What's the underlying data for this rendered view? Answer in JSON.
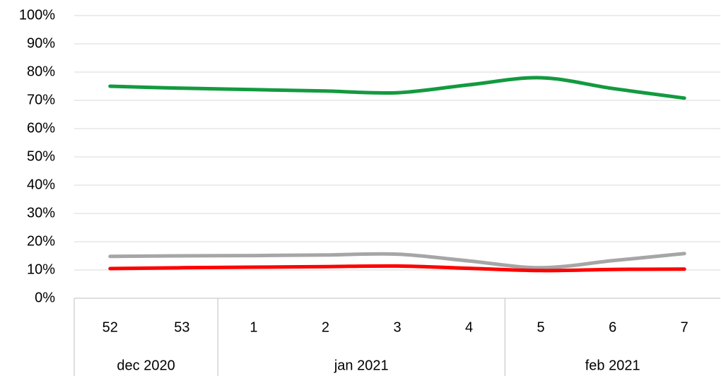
{
  "chart_data": {
    "type": "line",
    "categories": [
      "52",
      "53",
      "1",
      "2",
      "3",
      "4",
      "5",
      "6",
      "7"
    ],
    "groups": [
      {
        "label": "dec 2020",
        "size": 2
      },
      {
        "label": "jan 2021",
        "size": 4
      },
      {
        "label": "feb 2021",
        "size": 3
      }
    ],
    "series": [
      {
        "color": "#139a3f",
        "values": [
          75,
          74.3,
          73.8,
          73.3,
          72.7,
          75.5,
          78,
          74.2,
          70.8
        ]
      },
      {
        "color": "#a6a6a6",
        "values": [
          14.8,
          15,
          15.1,
          15.3,
          15.6,
          13.2,
          10.8,
          13.3,
          15.8
        ]
      },
      {
        "color": "#ff0000",
        "values": [
          10.5,
          10.8,
          11,
          11.2,
          11.4,
          10.6,
          9.8,
          10.2,
          10.3
        ]
      }
    ],
    "smooth": true,
    "ylim": [
      0,
      100
    ],
    "yticks": [
      {
        "value": 0,
        "label": "0%"
      },
      {
        "value": 10,
        "label": "10%"
      },
      {
        "value": 20,
        "label": "20%"
      },
      {
        "value": 30,
        "label": "30%"
      },
      {
        "value": 40,
        "label": "40%"
      },
      {
        "value": 50,
        "label": "50%"
      },
      {
        "value": 60,
        "label": "60%"
      },
      {
        "value": 70,
        "label": "70%"
      },
      {
        "value": 80,
        "label": "80%"
      },
      {
        "value": 90,
        "label": "90%"
      },
      {
        "value": 100,
        "label": "100%"
      }
    ],
    "grid": true
  }
}
